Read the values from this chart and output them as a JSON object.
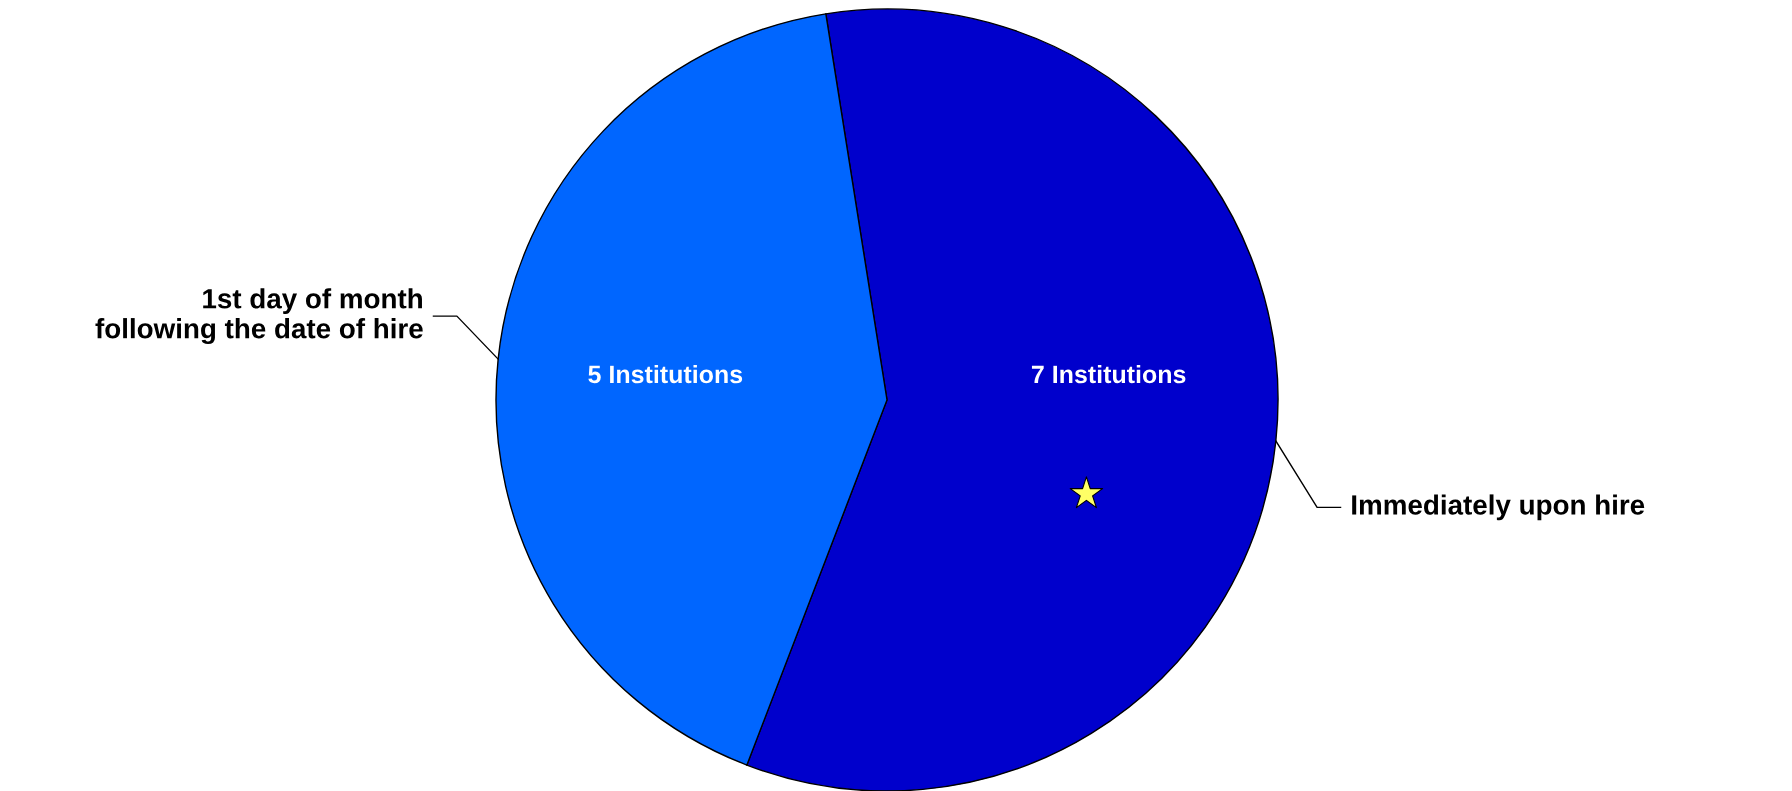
{
  "chart_data": {
    "type": "pie",
    "categories": [
      "Immediately upon hire",
      "1st day of month\nfollowing the date of hire"
    ],
    "values": [
      7,
      5
    ],
    "colors": [
      "#0000cc",
      "#0066ff"
    ],
    "value_labels": [
      "7 Institutions",
      "5 Institutions"
    ],
    "legend": false
  }
}
